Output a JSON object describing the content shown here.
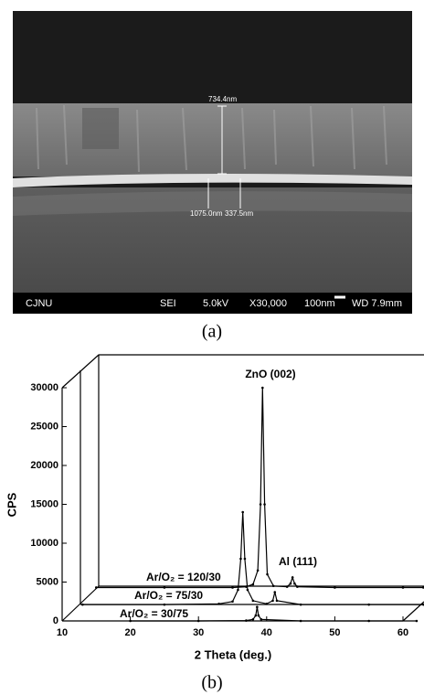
{
  "sem": {
    "caption": "(a)",
    "measurements": [
      "734.4nm",
      "1075.0nm",
      "337.5nm"
    ],
    "info_bar": [
      "CJNU",
      "SEI",
      "5.0kV",
      "X30,000",
      "100nm",
      "WD 7.9mm"
    ]
  },
  "chart_data": {
    "type": "line",
    "caption": "(b)",
    "x_label": "2 Theta (deg.)",
    "y_label": "CPS",
    "annotations": [
      "ZnO (002)",
      "Al (111)"
    ],
    "xlim": [
      10,
      60
    ],
    "xticks": [
      10,
      20,
      30,
      40,
      50,
      60
    ],
    "ylim": [
      0,
      30000
    ],
    "yticks": [
      0,
      5000,
      10000,
      15000,
      20000,
      25000,
      30000
    ],
    "series": [
      {
        "name": "Ar/O₂ = 120/30",
        "color": "#000000",
        "x": [
          15,
          25,
          35,
          37,
          38,
          38.7,
          39.1,
          39.4,
          39.7,
          40.1,
          41,
          43,
          43.5,
          43.8,
          44.1,
          44.5,
          50,
          60,
          63
        ],
        "values": [
          4300,
          4300,
          4300,
          4400,
          4700,
          6500,
          15000,
          30000,
          15000,
          6000,
          4500,
          4400,
          4800,
          5600,
          4800,
          4400,
          4300,
          4300,
          4300
        ]
      },
      {
        "name": "Ar/O₂ = 75/30",
        "color": "#000000",
        "x": [
          13,
          25,
          33,
          35,
          35.8,
          36.2,
          36.5,
          36.8,
          37.2,
          38,
          40,
          40.9,
          41.2,
          41.5,
          45,
          55,
          63
        ],
        "values": [
          2100,
          2100,
          2200,
          2500,
          4000,
          8000,
          14000,
          8000,
          4000,
          2600,
          2200,
          2600,
          3700,
          2600,
          2100,
          2100,
          2100
        ]
      },
      {
        "name": "Ar/O₂ = 30/75",
        "color": "#000000",
        "x": [
          20,
          30,
          37,
          38,
          38.4,
          38.6,
          38.8,
          39.2,
          45,
          55,
          62
        ],
        "values": [
          0,
          0,
          50,
          200,
          700,
          1800,
          700,
          200,
          0,
          0,
          0
        ]
      }
    ]
  }
}
